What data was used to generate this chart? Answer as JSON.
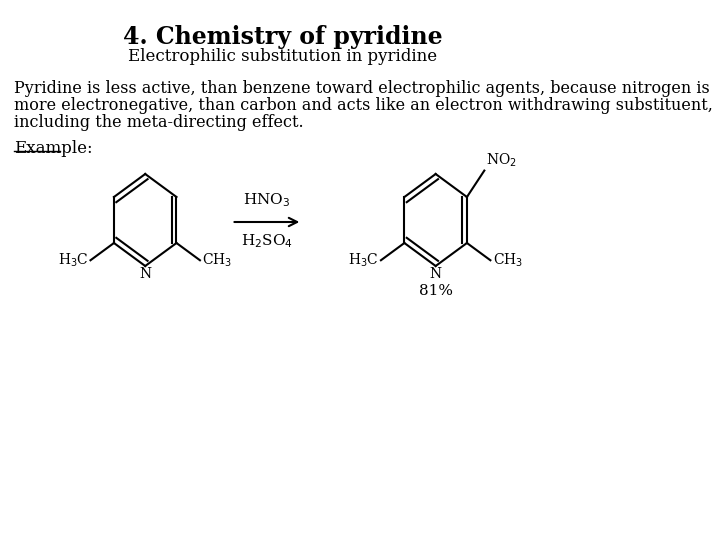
{
  "title": "4. Chemistry of pyridine",
  "subtitle": "Electrophilic substitution in pyridine",
  "body_line1": "Pyridine is less active, than benzene toward electrophilic agents, because nitrogen is",
  "body_line2": "more electronegative, than carbon and acts like an electron withdrawing substituent,",
  "body_line3": "including the meta-directing effect.",
  "example_label": "Example:",
  "yield_text": "81%",
  "bg_color": "#ffffff",
  "text_color": "#000000",
  "title_fontsize": 17,
  "subtitle_fontsize": 12,
  "body_fontsize": 11.5,
  "example_fontsize": 12,
  "chem_fontsize": 10,
  "reagent_fontsize": 11
}
